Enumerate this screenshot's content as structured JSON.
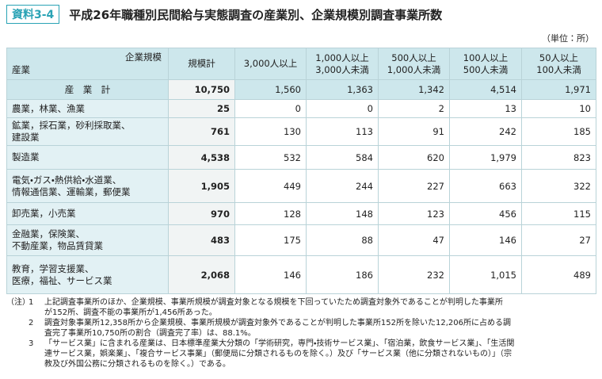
{
  "header": {
    "badge": "資料3-4",
    "title": "平成26年職種別民間給与実態調査の産業別、企業規模別調査事業所数",
    "unit": "（単位：所）"
  },
  "table": {
    "corner_top": "企業規模",
    "corner_bottom": "産業",
    "columns": [
      [
        "規模計"
      ],
      [
        "3,000人以上"
      ],
      [
        "1,000人以上",
        "3,000人未満"
      ],
      [
        "500人以上",
        "1,000人未満"
      ],
      [
        "100人以上",
        "500人未満"
      ],
      [
        "50人以上",
        "100人未満"
      ]
    ],
    "rows": [
      {
        "label": [
          "産　業　計"
        ],
        "values": [
          "10,750",
          "1,560",
          "1,363",
          "1,342",
          "4,514",
          "1,971"
        ]
      },
      {
        "label": [
          "農業，林業、漁業"
        ],
        "values": [
          "25",
          "0",
          "0",
          "2",
          "13",
          "10"
        ]
      },
      {
        "label": [
          "鉱業，採石業，砂利採取業、",
          "建設業"
        ],
        "values": [
          "761",
          "130",
          "113",
          "91",
          "242",
          "185"
        ]
      },
      {
        "label": [
          "製造業"
        ],
        "values": [
          "4,538",
          "532",
          "584",
          "620",
          "1,979",
          "823"
        ]
      },
      {
        "label": [
          "電気・ガス・熱供給・水道業、",
          "情報通信業、運輸業，郵便業"
        ],
        "values": [
          "1,905",
          "449",
          "244",
          "227",
          "663",
          "322"
        ]
      },
      {
        "label": [
          "卸売業，小売業"
        ],
        "values": [
          "970",
          "128",
          "148",
          "123",
          "456",
          "115"
        ]
      },
      {
        "label": [
          "金融業，保険業、",
          "不動産業，物品賃貸業"
        ],
        "values": [
          "483",
          "175",
          "88",
          "47",
          "146",
          "27"
        ]
      },
      {
        "label": [
          "教育，学習支援業、",
          "医療，福祉、サービス業"
        ],
        "values": [
          "2,068",
          "146",
          "186",
          "232",
          "1,015",
          "489"
        ]
      }
    ]
  },
  "notes": {
    "label": "（注）",
    "items": [
      {
        "number": "1",
        "lines": [
          "上記調査事業所のほか、企業規模、事業所規模が調査対象となる規模を下回っていたため調査対象外であることが判明した事業所",
          "が152所、調査不能の事業所が1,456所あった。"
        ]
      },
      {
        "number": "2",
        "lines": [
          "調査対象事業所12,358所から企業規模、事業所規模が調査対象外であることが判明した事業所152所を除いた12,206所に占める調",
          "査完了事業所10,750所の割合（調査完了率）は、88.1%。"
        ]
      },
      {
        "number": "3",
        "lines": [
          "「サービス業」に含まれる産業は、日本標準産業大分類の「学術研究，専門・技術サービス業」、「宿泊業，飲食サービス業」、「生活関",
          "連サービス業，娯楽業」、「複合サービス事業」（郵便局に分類されるものを除く。）及び「サービス業（他に分類されないもの）」（宗",
          "教及び外国公務に分類されるものを除く。）である。"
        ]
      }
    ]
  }
}
